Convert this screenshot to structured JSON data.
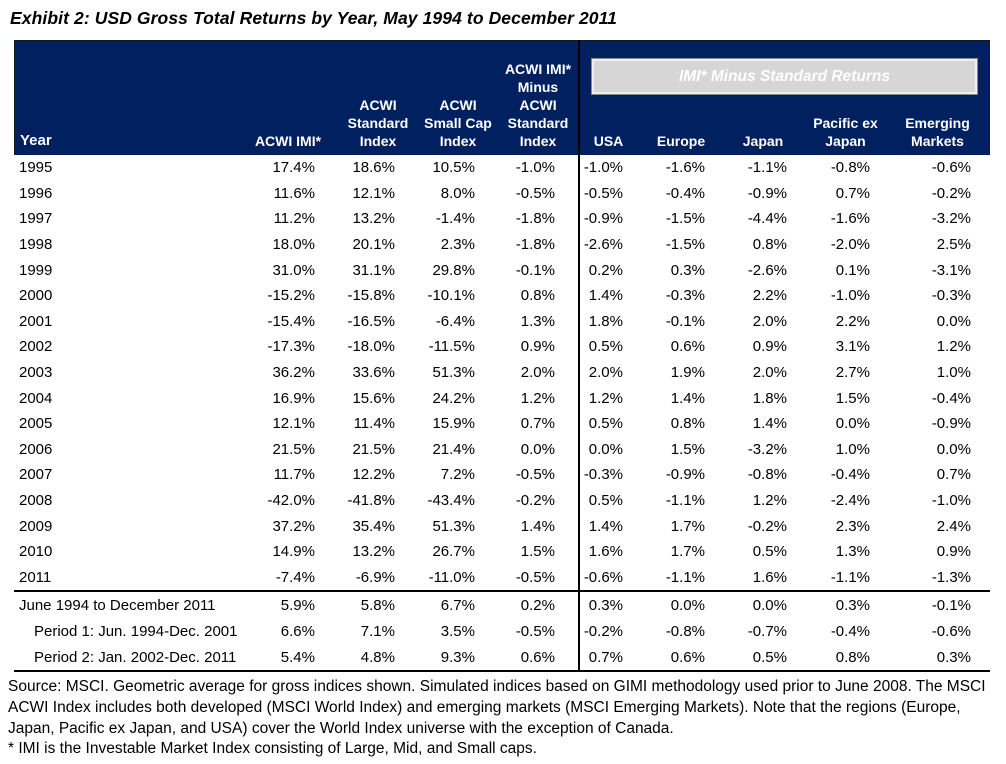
{
  "title": "Exhibit 2: USD Gross Total Returns by Year, May 1994 to December 2011",
  "colors": {
    "header_bg": "#002060",
    "header_text": "#FFFFFF",
    "group_box_bg": "#D6D6D6",
    "body_text": "#000000"
  },
  "table": {
    "year_header": "Year",
    "left_columns": [
      "ACWI IMI*",
      "ACWI\nStandard\nIndex",
      "ACWI\nSmall Cap\nIndex",
      "ACWI IMI*\nMinus\nACWI\nStandard\nIndex"
    ],
    "group_header": "IMI* Minus Standard Returns",
    "right_columns": [
      "USA",
      "Europe",
      "Japan",
      "Pacific ex\nJapan",
      "Emerging\nMarkets"
    ],
    "rows": [
      {
        "label": "1995",
        "values": [
          "17.4%",
          "18.6%",
          "10.5%",
          "-1.0%",
          "-1.0%",
          "-1.6%",
          "-1.1%",
          "-0.8%",
          "-0.6%"
        ]
      },
      {
        "label": "1996",
        "values": [
          "11.6%",
          "12.1%",
          "8.0%",
          "-0.5%",
          "-0.5%",
          "-0.4%",
          "-0.9%",
          "0.7%",
          "-0.2%"
        ]
      },
      {
        "label": "1997",
        "values": [
          "11.2%",
          "13.2%",
          "-1.4%",
          "-1.8%",
          "-0.9%",
          "-1.5%",
          "-4.4%",
          "-1.6%",
          "-3.2%"
        ]
      },
      {
        "label": "1998",
        "values": [
          "18.0%",
          "20.1%",
          "2.3%",
          "-1.8%",
          "-2.6%",
          "-1.5%",
          "0.8%",
          "-2.0%",
          "2.5%"
        ]
      },
      {
        "label": "1999",
        "values": [
          "31.0%",
          "31.1%",
          "29.8%",
          "-0.1%",
          "0.2%",
          "0.3%",
          "-2.6%",
          "0.1%",
          "-3.1%"
        ]
      },
      {
        "label": "2000",
        "values": [
          "-15.2%",
          "-15.8%",
          "-10.1%",
          "0.8%",
          "1.4%",
          "-0.3%",
          "2.2%",
          "-1.0%",
          "-0.3%"
        ]
      },
      {
        "label": "2001",
        "values": [
          "-15.4%",
          "-16.5%",
          "-6.4%",
          "1.3%",
          "1.8%",
          "-0.1%",
          "2.0%",
          "2.2%",
          "0.0%"
        ]
      },
      {
        "label": "2002",
        "values": [
          "-17.3%",
          "-18.0%",
          "-11.5%",
          "0.9%",
          "0.5%",
          "0.6%",
          "0.9%",
          "3.1%",
          "1.2%"
        ]
      },
      {
        "label": "2003",
        "values": [
          "36.2%",
          "33.6%",
          "51.3%",
          "2.0%",
          "2.0%",
          "1.9%",
          "2.0%",
          "2.7%",
          "1.0%"
        ]
      },
      {
        "label": "2004",
        "values": [
          "16.9%",
          "15.6%",
          "24.2%",
          "1.2%",
          "1.2%",
          "1.4%",
          "1.8%",
          "1.5%",
          "-0.4%"
        ]
      },
      {
        "label": "2005",
        "values": [
          "12.1%",
          "11.4%",
          "15.9%",
          "0.7%",
          "0.5%",
          "0.8%",
          "1.4%",
          "0.0%",
          "-0.9%"
        ]
      },
      {
        "label": "2006",
        "values": [
          "21.5%",
          "21.5%",
          "21.4%",
          "0.0%",
          "0.0%",
          "1.5%",
          "-3.2%",
          "1.0%",
          "0.0%"
        ]
      },
      {
        "label": "2007",
        "values": [
          "11.7%",
          "12.2%",
          "7.2%",
          "-0.5%",
          "-0.3%",
          "-0.9%",
          "-0.8%",
          "-0.4%",
          "0.7%"
        ]
      },
      {
        "label": "2008",
        "values": [
          "-42.0%",
          "-41.8%",
          "-43.4%",
          "-0.2%",
          "0.5%",
          "-1.1%",
          "1.2%",
          "-2.4%",
          "-1.0%"
        ]
      },
      {
        "label": "2009",
        "values": [
          "37.2%",
          "35.4%",
          "51.3%",
          "1.4%",
          "1.4%",
          "1.7%",
          "-0.2%",
          "2.3%",
          "2.4%"
        ]
      },
      {
        "label": "2010",
        "values": [
          "14.9%",
          "13.2%",
          "26.7%",
          "1.5%",
          "1.6%",
          "1.7%",
          "0.5%",
          "1.3%",
          "0.9%"
        ]
      },
      {
        "label": "2011",
        "values": [
          "-7.4%",
          "-6.9%",
          "-11.0%",
          "-0.5%",
          "-0.6%",
          "-1.1%",
          "1.6%",
          "-1.1%",
          "-1.3%"
        ]
      }
    ],
    "summary_rows": [
      {
        "label": "June 1994 to December 2011",
        "indent": false,
        "values": [
          "5.9%",
          "5.8%",
          "6.7%",
          "0.2%",
          "0.3%",
          "0.0%",
          "0.0%",
          "0.3%",
          "-0.1%"
        ]
      },
      {
        "label": "Period 1: Jun. 1994-Dec. 2001",
        "indent": true,
        "values": [
          "6.6%",
          "7.1%",
          "3.5%",
          "-0.5%",
          "-0.2%",
          "-0.8%",
          "-0.7%",
          "-0.4%",
          "-0.6%"
        ]
      },
      {
        "label": "Period 2: Jan. 2002-Dec. 2011",
        "indent": true,
        "values": [
          "5.4%",
          "4.8%",
          "9.3%",
          "0.6%",
          "0.7%",
          "0.6%",
          "0.5%",
          "0.8%",
          "0.3%"
        ]
      }
    ]
  },
  "footer": {
    "source_note": "Source: MSCI. Geometric average for gross indices shown. Simulated indices based on GIMI methodology used prior to June 2008.  The MSCI ACWI Index includes both developed (MSCI World Index) and emerging markets (MSCI Emerging Markets). Note that the regions (Europe, Japan, Pacific ex Japan, and USA) cover the World Index universe with the exception of Canada.",
    "footnote": "* IMI is the Investable Market Index consisting of Large, Mid, and Small caps."
  }
}
